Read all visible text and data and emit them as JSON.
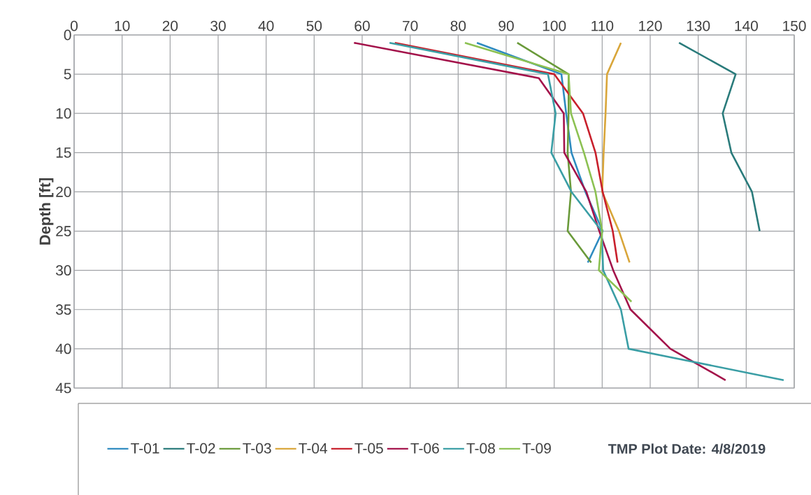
{
  "chart_data": {
    "type": "line",
    "ylabel": "Depth [ft]",
    "xlim": [
      0,
      150
    ],
    "xticks": [
      0,
      10,
      20,
      30,
      40,
      50,
      60,
      70,
      80,
      90,
      100,
      110,
      120,
      130,
      140,
      150
    ],
    "ylim": [
      45,
      0
    ],
    "yticks": [
      0,
      5,
      10,
      15,
      20,
      25,
      30,
      35,
      40,
      45
    ],
    "grid": true,
    "legend": "bottom",
    "line_style": "solid",
    "annotations": [
      "**TMP Plot Date: 4/8/2019**"
    ],
    "series": [
      {
        "name": "T-01",
        "color": "#2e8bc0",
        "x": [
          83.9,
          101.5,
          102.5,
          103.6,
          106.5,
          110.1,
          107
        ],
        "values": [
          1,
          5,
          10,
          15,
          20,
          25,
          29
        ]
      },
      {
        "name": "T-02",
        "color": "#2a7b7b",
        "x": [
          126.0,
          137.8,
          135.1,
          136.9,
          141.2,
          142.8
        ],
        "values": [
          1,
          5,
          10,
          15,
          20,
          25
        ]
      },
      {
        "name": "T-03",
        "color": "#6a9a3a",
        "x": [
          92.3,
          103,
          103,
          102.8,
          103.5,
          102.8,
          107.7
        ],
        "values": [
          1,
          5,
          10,
          15,
          20,
          25,
          29
        ]
      },
      {
        "name": "T-04",
        "color": "#d9a63a",
        "x": [
          113.9,
          111,
          110.7,
          110.3,
          110,
          113.5,
          115.7
        ],
        "values": [
          1,
          5,
          10,
          15,
          20,
          25,
          29
        ]
      },
      {
        "name": "T-05",
        "color": "#c8202c",
        "x": [
          66.8,
          100,
          106,
          108.6,
          110.1,
          112.2,
          113.2
        ],
        "values": [
          1,
          5,
          10,
          15,
          20,
          25,
          29
        ]
      },
      {
        "name": "T-06",
        "color": "#a3124a",
        "x": [
          58.3,
          96.8,
          102,
          102.1,
          106.7,
          109.4,
          112.3,
          115.9,
          124.2,
          135.7
        ],
        "values": [
          1,
          5.5,
          10,
          15,
          20,
          25,
          30,
          35,
          40,
          44
        ]
      },
      {
        "name": "T-08",
        "color": "#3a9ea5",
        "x": [
          65.7,
          98.7,
          100.3,
          99.4,
          103.6,
          109.9,
          110.2,
          113.9,
          115.5,
          147.8
        ],
        "values": [
          1,
          5,
          10,
          15,
          20,
          25,
          30,
          35,
          40,
          44
        ]
      },
      {
        "name": "T-09",
        "color": "#8cc152",
        "x": [
          81.4,
          103,
          103.5,
          106.2,
          108.6,
          110,
          109.3,
          116.1
        ],
        "values": [
          1,
          5,
          10,
          15,
          20,
          25,
          30,
          34
        ]
      }
    ]
  }
}
